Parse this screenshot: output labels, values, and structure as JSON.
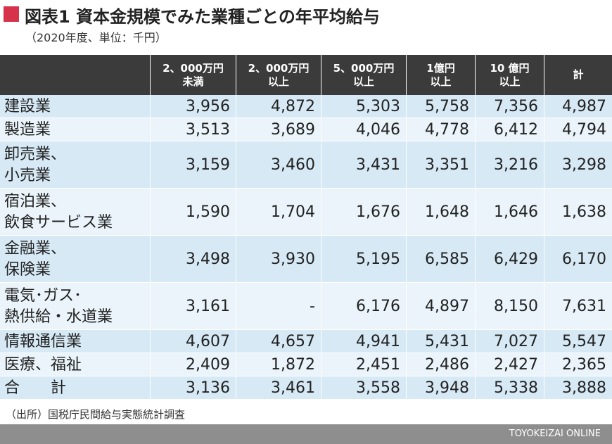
{
  "header": {
    "title": "図表1 資本金規模でみた業種ごとの年平均給与",
    "subtitle": "（2020年度、単位：千円）"
  },
  "table": {
    "columns": [
      [
        "2、000万円",
        "未満"
      ],
      [
        "2、000万円",
        "以上"
      ],
      [
        "5、000万円",
        "以上"
      ],
      [
        "1億円",
        "以上"
      ],
      [
        "10 億円",
        "以上"
      ],
      [
        "計"
      ]
    ],
    "rows": [
      {
        "label": [
          "建設業"
        ],
        "cells": [
          "3,956",
          "4,872",
          "5,303",
          "5,758",
          "7,356",
          "4,987"
        ]
      },
      {
        "label": [
          "製造業"
        ],
        "cells": [
          "3,513",
          "3,689",
          "4,046",
          "4,778",
          "6,412",
          "4,794"
        ]
      },
      {
        "label": [
          "卸売業、",
          "小売業"
        ],
        "cells": [
          "3,159",
          "3,460",
          "3,431",
          "3,351",
          "3,216",
          "3,298"
        ]
      },
      {
        "label": [
          "宿泊業、",
          "飲食サービス業"
        ],
        "cells": [
          "1,590",
          "1,704",
          "1,676",
          "1,648",
          "1,646",
          "1,638"
        ]
      },
      {
        "label": [
          "金融業、",
          "保険業"
        ],
        "cells": [
          "3,498",
          "3,930",
          "5,195",
          "6,585",
          "6,429",
          "6,170"
        ]
      },
      {
        "label": [
          "電気･ガス･",
          "熱供給・水道業"
        ],
        "cells": [
          "3,161",
          "-",
          "6,176",
          "4,897",
          "8,150",
          "7,631"
        ]
      },
      {
        "label": [
          "情報通信業"
        ],
        "cells": [
          "4,607",
          "4,657",
          "4,941",
          "5,431",
          "7,027",
          "5,547"
        ]
      },
      {
        "label": [
          "医療、福祉"
        ],
        "cells": [
          "2,409",
          "1,872",
          "2,451",
          "2,486",
          "2,427",
          "2,365"
        ]
      },
      {
        "label": [
          "合　　計"
        ],
        "cells": [
          "3,136",
          "3,461",
          "3,558",
          "3,948",
          "5,338",
          "3,888"
        ]
      }
    ]
  },
  "source": "（出所）国税庁民間給与実態統計調査",
  "footer": {
    "brand": "TOYOKEIZAI ONLINE"
  }
}
